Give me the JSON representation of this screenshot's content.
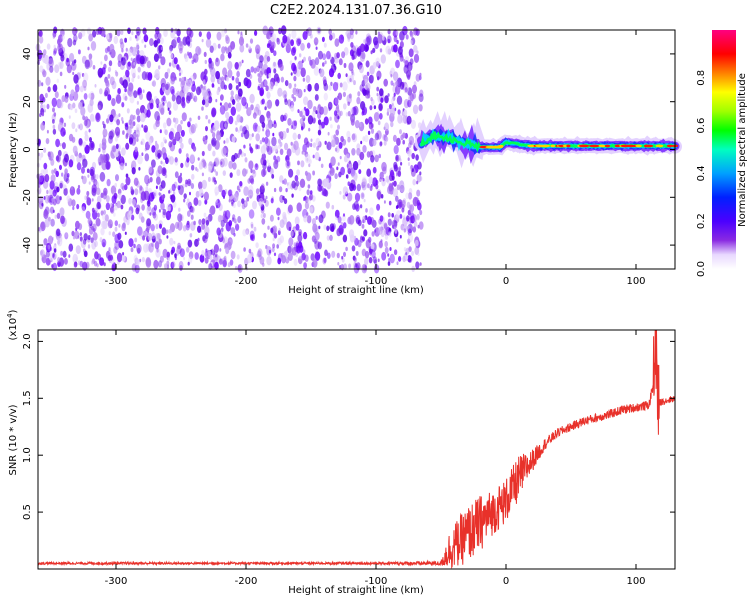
{
  "title": "C2E2.2024.131.07.36.G10",
  "chart_data": [
    {
      "type": "heatmap",
      "xlabel": "Height of straight line (km)",
      "ylabel": "Frequency (Hz)",
      "xlim": [
        -360,
        130
      ],
      "ylim": [
        -50,
        50
      ],
      "x_ticks": [
        -300,
        -200,
        -100,
        0,
        100
      ],
      "y_ticks": [
        -40,
        -20,
        0,
        20,
        40
      ],
      "noise_region_x": [
        -360,
        -65
      ],
      "signal": {
        "frequency_hz": 1.5,
        "x_start": -65,
        "x_end": 130,
        "profile": [
          {
            "x": -65,
            "f": 3,
            "amplitude": 0.35
          },
          {
            "x": -55,
            "f": 6,
            "amplitude": 0.45
          },
          {
            "x": -45,
            "f": 5,
            "amplitude": 0.5
          },
          {
            "x": -35,
            "f": 3,
            "amplitude": 0.55
          },
          {
            "x": -20,
            "f": 1,
            "amplitude": 0.7
          },
          {
            "x": -5,
            "f": 1,
            "amplitude": 0.75
          },
          {
            "x": 0,
            "f": 3,
            "amplitude": 0.6
          },
          {
            "x": 20,
            "f": 1.5,
            "amplitude": 0.75
          },
          {
            "x": 60,
            "f": 1.5,
            "amplitude": 0.8
          },
          {
            "x": 90,
            "f": 1.5,
            "amplitude": 0.9
          },
          {
            "x": 130,
            "f": 1.5,
            "amplitude": 0.85
          }
        ]
      },
      "colorbar": {
        "label": "Normalized spectral amplitude",
        "range": [
          0.0,
          1.0
        ],
        "ticks": [
          "0.0",
          "0.2",
          "0.4",
          "0.6",
          "0.8"
        ],
        "colors": [
          "#ffffff",
          "#e8d8ff",
          "#8a2be2",
          "#4b00ff",
          "#0000ff",
          "#00a0ff",
          "#00ffc0",
          "#00ff00",
          "#a0ff00",
          "#ffff00",
          "#ff8000",
          "#ff0000",
          "#ff0080"
        ]
      },
      "grid": false
    },
    {
      "type": "line",
      "xlabel": "Height of straight line (km)",
      "ylabel": "SNR (10 * v/v)",
      "yscale_label": "(x10",
      "yscale_exp": "4",
      "xlim": [
        -360,
        130
      ],
      "ylim": [
        0,
        2.1
      ],
      "x_ticks": [
        -300,
        -200,
        -100,
        0,
        100
      ],
      "y_ticks": [
        "0.5",
        "1.0",
        "1.5",
        "2.0"
      ],
      "color": "#e8312a",
      "series": [
        {
          "x": [
            -360,
            -300,
            -200,
            -100,
            -50,
            -45,
            -40,
            -30,
            -20,
            -10,
            0,
            5,
            10,
            20,
            30,
            40,
            50,
            60,
            70,
            80,
            90,
            100,
            110,
            113,
            115,
            117,
            120,
            130
          ],
          "y": [
            0.05,
            0.05,
            0.05,
            0.05,
            0.05,
            0.15,
            0.2,
            0.3,
            0.4,
            0.5,
            0.6,
            0.7,
            0.8,
            0.95,
            1.1,
            1.2,
            1.25,
            1.3,
            1.33,
            1.36,
            1.4,
            1.42,
            1.44,
            1.6,
            2.05,
            1.45,
            1.47,
            1.5
          ],
          "noise_amplitude": [
            0.01,
            0.01,
            0.01,
            0.01,
            0.02,
            0.15,
            0.2,
            0.25,
            0.25,
            0.2,
            0.2,
            0.2,
            0.2,
            0.1,
            0.05,
            0.04,
            0.04,
            0.04,
            0.04,
            0.04,
            0.04,
            0.04,
            0.04,
            0.05,
            0.05,
            0.04,
            0.03,
            0.03
          ]
        }
      ],
      "grid": false
    }
  ]
}
